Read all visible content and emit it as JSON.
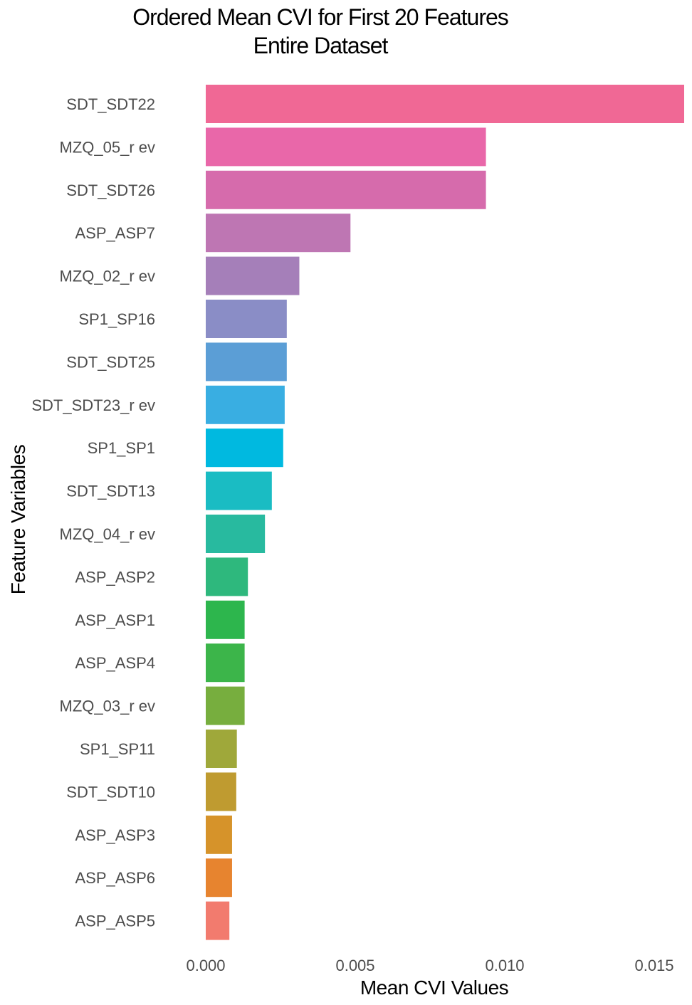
{
  "chart_data": {
    "type": "bar",
    "orientation": "horizontal",
    "title": "Ordered Mean CVI  for First 20  Features",
    "subtitle": "Entire Dataset",
    "xlabel": "Mean CVI  Values",
    "ylabel": "Feature Variables",
    "xlim": [
      0,
      0.016
    ],
    "xticks": [
      0,
      0.005,
      0.01,
      0.015
    ],
    "xtick_labels": [
      "0.000",
      "0.005",
      "0.010",
      "0.015"
    ],
    "grid": false,
    "legend": "none",
    "categories": [
      "SDT_SDT22",
      "MZQ_05_r ev",
      "SDT_SDT26",
      "ASP_ASP7",
      "MZQ_02_r ev",
      "SP1_SP16",
      "SDT_SDT25",
      "SDT_SDT23_r ev",
      "SP1_SP1",
      "SDT_SDT13",
      "MZQ_04_r ev",
      "ASP_ASP2",
      "ASP_ASP1",
      "ASP_ASP4",
      "MZQ_03_r ev",
      "SP1_SP11",
      "SDT_SDT10",
      "ASP_ASP3",
      "ASP_ASP6",
      "ASP_ASP5"
    ],
    "values": [
      0.016,
      0.00937,
      0.00937,
      0.00484,
      0.00313,
      0.00271,
      0.00271,
      0.00264,
      0.00259,
      0.00221,
      0.00198,
      0.00141,
      0.0013,
      0.0013,
      0.0013,
      0.00104,
      0.00102,
      0.00088,
      0.00088,
      0.00079
    ],
    "colors": [
      "#F06895",
      "#E967A9",
      "#D66BAC",
      "#BE76B3",
      "#A57FB9",
      "#8A8DC6",
      "#5B9ED6",
      "#39AEE2",
      "#00B9E0",
      "#1ABCC3",
      "#28BA9F",
      "#2EB87D",
      "#2DB64D",
      "#3CB54A",
      "#77AE3E",
      "#9FA83A",
      "#BF9B30",
      "#D6932A",
      "#E7842F",
      "#F27B6E"
    ]
  }
}
